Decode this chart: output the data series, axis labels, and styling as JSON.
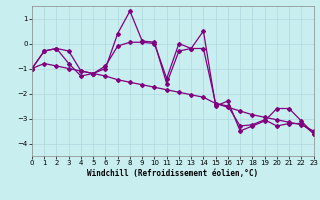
{
  "line1_x": [
    0,
    1,
    2,
    3,
    4,
    5,
    6,
    7,
    8,
    9,
    10,
    11,
    12,
    13,
    14,
    15,
    16,
    17,
    18,
    19,
    20,
    21,
    22,
    23
  ],
  "line1_y": [
    -1.0,
    -0.3,
    -0.2,
    -0.8,
    -1.3,
    -1.2,
    -1.0,
    0.4,
    1.3,
    0.1,
    0.05,
    -1.6,
    -0.3,
    -0.2,
    0.5,
    -2.5,
    -2.3,
    -3.5,
    -3.3,
    -3.1,
    -2.6,
    -2.6,
    -3.1,
    -3.6
  ],
  "line2_x": [
    0,
    1,
    2,
    3,
    4,
    5,
    6,
    7,
    8,
    9,
    10,
    11,
    12,
    13,
    14,
    15,
    16,
    17,
    18,
    19,
    20,
    21,
    22,
    23
  ],
  "line2_y": [
    -1.0,
    -0.3,
    -0.2,
    -0.3,
    -1.1,
    -1.2,
    -0.9,
    -0.1,
    0.05,
    0.05,
    0.0,
    -1.4,
    0.0,
    -0.2,
    -0.2,
    -2.4,
    -2.5,
    -3.3,
    -3.25,
    -3.05,
    -3.3,
    -3.2,
    -3.2,
    -3.6
  ],
  "line3_x": [
    0,
    1,
    2,
    3,
    4,
    5,
    6,
    7,
    8,
    9,
    10,
    11,
    12,
    13,
    14,
    15,
    16,
    17,
    18,
    19,
    20,
    21,
    22,
    23
  ],
  "line3_y": [
    -1.0,
    -0.8,
    -0.9,
    -1.0,
    -1.1,
    -1.2,
    -1.3,
    -1.45,
    -1.55,
    -1.65,
    -1.75,
    -1.85,
    -1.95,
    -2.05,
    -2.15,
    -2.4,
    -2.55,
    -2.7,
    -2.85,
    -2.95,
    -3.05,
    -3.15,
    -3.25,
    -3.5
  ],
  "bg_color": "#c8eef0",
  "grid_color": "#b0d8dc",
  "line_color": "#800080",
  "xlabel": "Windchill (Refroidissement éolien,°C)",
  "xlim": [
    0,
    23
  ],
  "ylim": [
    -4.5,
    1.5
  ],
  "yticks": [
    -4,
    -3,
    -2,
    -1,
    0,
    1
  ],
  "xticks": [
    0,
    1,
    2,
    3,
    4,
    5,
    6,
    7,
    8,
    9,
    10,
    11,
    12,
    13,
    14,
    15,
    16,
    17,
    18,
    19,
    20,
    21,
    22,
    23
  ]
}
